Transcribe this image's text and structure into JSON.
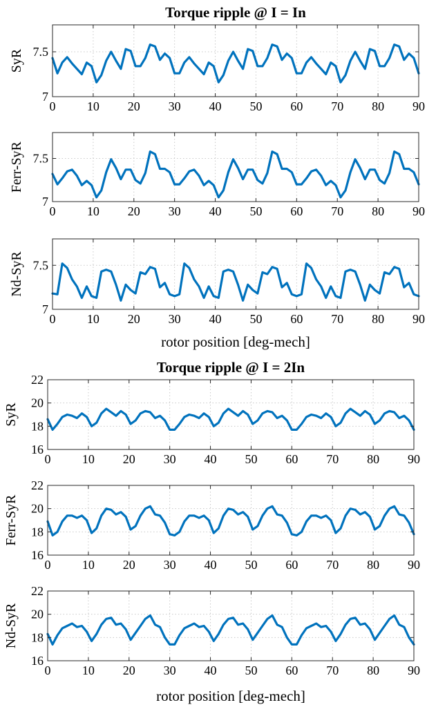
{
  "figure": {
    "series_color": "#0072BD"
  },
  "chart_data": [
    {
      "type": "line",
      "title": "Torque ripple @ I = In",
      "xlabel": "",
      "ylabel": "SyR",
      "xlim": [
        0,
        90
      ],
      "ylim": [
        7,
        7.8
      ],
      "yticks": [
        7,
        7.5
      ],
      "xticks": [
        0,
        10,
        20,
        30,
        40,
        50,
        60,
        70,
        80,
        90
      ],
      "grid": true,
      "x": [
        0,
        1.2,
        2.4,
        3.6,
        4.8,
        6.0,
        7.2,
        8.4,
        9.6,
        10.8,
        12.0,
        13.2,
        14.4,
        15.6,
        16.8,
        18.0,
        19.2,
        20.4,
        21.6,
        22.8,
        24.0,
        25.2,
        26.4,
        27.6,
        28.8,
        30.0
      ],
      "series": [
        {
          "values": [
            7.43,
            7.26,
            7.38,
            7.44,
            7.37,
            7.31,
            7.25,
            7.38,
            7.34,
            7.16,
            7.24,
            7.4,
            7.5,
            7.4,
            7.31,
            7.53,
            7.51,
            7.34,
            7.34,
            7.43,
            7.58,
            7.56,
            7.41,
            7.48,
            7.43,
            7.26
          ]
        }
      ]
    },
    {
      "type": "line",
      "title": "",
      "xlabel": "",
      "ylabel": "Ferr-SyR",
      "xlim": [
        0,
        90
      ],
      "ylim": [
        7,
        7.8
      ],
      "yticks": [
        7,
        7.5
      ],
      "xticks": [
        0,
        10,
        20,
        30,
        40,
        50,
        60,
        70,
        80,
        90
      ],
      "grid": true,
      "x": [
        0,
        1.2,
        2.4,
        3.6,
        4.8,
        6.0,
        7.2,
        8.4,
        9.6,
        10.8,
        12.0,
        13.2,
        14.4,
        15.6,
        16.8,
        18.0,
        19.2,
        20.4,
        21.6,
        22.8,
        24.0,
        25.2,
        26.4,
        27.6,
        28.8,
        30.0
      ],
      "series": [
        {
          "values": [
            7.32,
            7.2,
            7.27,
            7.35,
            7.37,
            7.3,
            7.19,
            7.24,
            7.19,
            7.05,
            7.13,
            7.34,
            7.49,
            7.39,
            7.26,
            7.37,
            7.37,
            7.25,
            7.21,
            7.33,
            7.58,
            7.55,
            7.38,
            7.38,
            7.34,
            7.2
          ]
        }
      ]
    },
    {
      "type": "line",
      "title": "",
      "xlabel": "rotor position [deg-mech]",
      "ylabel": "Nd-SyR",
      "xlim": [
        0,
        90
      ],
      "ylim": [
        7,
        7.8
      ],
      "yticks": [
        7,
        7.5
      ],
      "xticks": [
        0,
        10,
        20,
        30,
        40,
        50,
        60,
        70,
        80,
        90
      ],
      "grid": true,
      "x": [
        0,
        1.2,
        2.4,
        3.6,
        4.8,
        6.0,
        7.2,
        8.4,
        9.6,
        10.8,
        12.0,
        13.2,
        14.4,
        15.6,
        16.8,
        18.0,
        19.2,
        20.4,
        21.6,
        22.8,
        24.0,
        25.2,
        26.4,
        27.6,
        28.8,
        30.0
      ],
      "series": [
        {
          "values": [
            7.18,
            7.17,
            7.52,
            7.47,
            7.34,
            7.26,
            7.13,
            7.26,
            7.15,
            7.13,
            7.43,
            7.45,
            7.43,
            7.28,
            7.1,
            7.28,
            7.22,
            7.18,
            7.42,
            7.4,
            7.48,
            7.46,
            7.25,
            7.3,
            7.17,
            7.15
          ]
        }
      ]
    },
    {
      "type": "line",
      "title": "Torque ripple @ I = 2In",
      "xlabel": "",
      "ylabel": "SyR",
      "xlim": [
        0,
        90
      ],
      "ylim": [
        16,
        22
      ],
      "yticks": [
        16,
        18,
        20,
        22
      ],
      "xticks": [
        0,
        10,
        20,
        30,
        40,
        50,
        60,
        70,
        80,
        90
      ],
      "grid": true,
      "x": [
        0,
        1.2,
        2.4,
        3.6,
        4.8,
        6.0,
        7.2,
        8.4,
        9.6,
        10.8,
        12.0,
        13.2,
        14.4,
        15.6,
        16.8,
        18.0,
        19.2,
        20.4,
        21.6,
        22.8,
        24.0,
        25.2,
        26.4,
        27.6,
        28.8,
        30.0
      ],
      "series": [
        {
          "values": [
            18.6,
            17.7,
            18.2,
            18.8,
            19.0,
            18.9,
            18.7,
            19.1,
            18.8,
            18.0,
            18.3,
            19.1,
            19.5,
            19.2,
            18.9,
            19.3,
            19.0,
            18.2,
            18.5,
            19.1,
            19.3,
            19.2,
            18.7,
            18.9,
            18.5,
            17.7
          ]
        }
      ]
    },
    {
      "type": "line",
      "title": "",
      "xlabel": "",
      "ylabel": "Ferr-SyR",
      "xlim": [
        0,
        90
      ],
      "ylim": [
        16,
        22
      ],
      "yticks": [
        16,
        18,
        20,
        22
      ],
      "xticks": [
        0,
        10,
        20,
        30,
        40,
        50,
        60,
        70,
        80,
        90
      ],
      "grid": true,
      "x": [
        0,
        1.2,
        2.4,
        3.6,
        4.8,
        6.0,
        7.2,
        8.4,
        9.6,
        10.8,
        12.0,
        13.2,
        14.4,
        15.6,
        16.8,
        18.0,
        19.2,
        20.4,
        21.6,
        22.8,
        24.0,
        25.2,
        26.4,
        27.6,
        28.8,
        30.0
      ],
      "series": [
        {
          "values": [
            18.9,
            17.7,
            18.0,
            18.9,
            19.4,
            19.4,
            19.2,
            19.4,
            19.0,
            17.9,
            18.3,
            19.4,
            20.0,
            19.9,
            19.5,
            19.7,
            19.3,
            18.2,
            18.5,
            19.4,
            20.0,
            20.2,
            19.5,
            19.4,
            18.8,
            17.8
          ]
        }
      ]
    },
    {
      "type": "line",
      "title": "",
      "xlabel": "rotor position [deg-mech]",
      "ylabel": "Nd-SyR",
      "xlim": [
        0,
        90
      ],
      "ylim": [
        16,
        22
      ],
      "yticks": [
        16,
        18,
        20,
        22
      ],
      "xticks": [
        0,
        10,
        20,
        30,
        40,
        50,
        60,
        70,
        80,
        90
      ],
      "grid": true,
      "x": [
        0,
        1.2,
        2.4,
        3.6,
        4.8,
        6.0,
        7.2,
        8.4,
        9.6,
        10.8,
        12.0,
        13.2,
        14.4,
        15.6,
        16.8,
        18.0,
        19.2,
        20.4,
        21.6,
        22.8,
        24.0,
        25.2,
        26.4,
        27.6,
        28.8,
        30.0
      ],
      "series": [
        {
          "values": [
            18.3,
            17.4,
            18.2,
            18.8,
            19.0,
            19.2,
            18.9,
            19.0,
            18.5,
            17.7,
            18.3,
            19.1,
            19.6,
            19.7,
            19.1,
            19.2,
            18.7,
            17.8,
            18.4,
            19.0,
            19.6,
            19.9,
            19.1,
            18.9,
            18.0,
            17.4
          ]
        }
      ]
    }
  ]
}
